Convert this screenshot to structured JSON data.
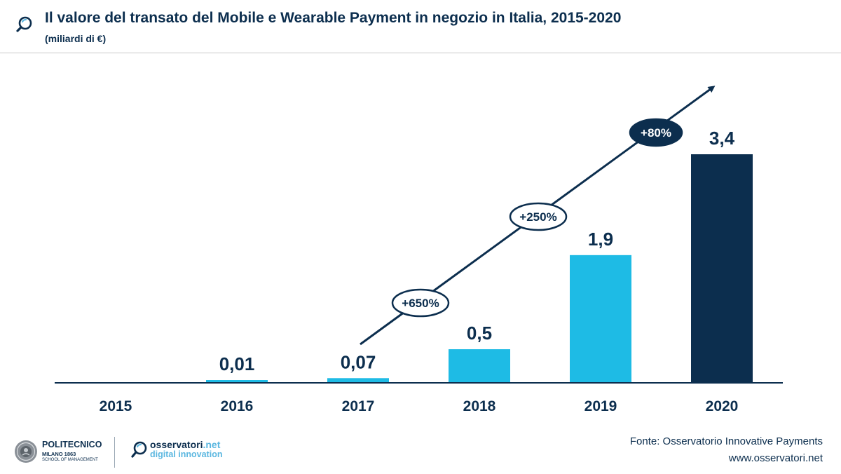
{
  "header": {
    "title": "Il valore del transato del Mobile e Wearable Payment in negozio in Italia, 2015-2020",
    "subtitle": "(miliardi di €)"
  },
  "chart_data": {
    "type": "bar",
    "title": "Il valore del transato del Mobile e Wearable Payment in negozio in Italia, 2015-2020",
    "ylabel": "miliardi di €",
    "xlabel": "",
    "categories": [
      "2015",
      "2016",
      "2017",
      "2018",
      "2019",
      "2020"
    ],
    "values": [
      0,
      0.01,
      0.07,
      0.5,
      1.9,
      3.4
    ],
    "value_labels": [
      "",
      "0,01",
      "0,07",
      "0,5",
      "1,9",
      "3,4"
    ],
    "ylim": [
      0,
      3.4
    ],
    "grid": false,
    "growth_annotations": [
      {
        "label": "+650%",
        "from": "2017",
        "to": "2018"
      },
      {
        "label": "+250%",
        "from": "2018",
        "to": "2019"
      },
      {
        "label": "+80%",
        "from": "2019",
        "to": "2020"
      }
    ],
    "colors": {
      "bar": "#1ebbe5",
      "highlight": "#0c2e4e",
      "text": "#0c2e4e",
      "badge_fill": "#0c2e4e",
      "badge_text_on_dark": "#ffffff",
      "badge_fill_light": "#ffffff"
    }
  },
  "footer": {
    "logo_poli_name": "POLITECNICO",
    "logo_poli_city": "MILANO 1863",
    "logo_poli_school": "SCHOOL OF MANAGEMENT",
    "logo_oss_part1": "osservatori",
    "logo_oss_part2": ".net",
    "logo_oss_tagline": "digital innovation",
    "source": "Fonte: Osservatorio Innovative Payments",
    "website": "www.osservatori.net"
  },
  "icons": {
    "header_icon": "magnifier-icon",
    "poli_seal": "seal-icon",
    "oss_icon": "magnifier-icon"
  }
}
